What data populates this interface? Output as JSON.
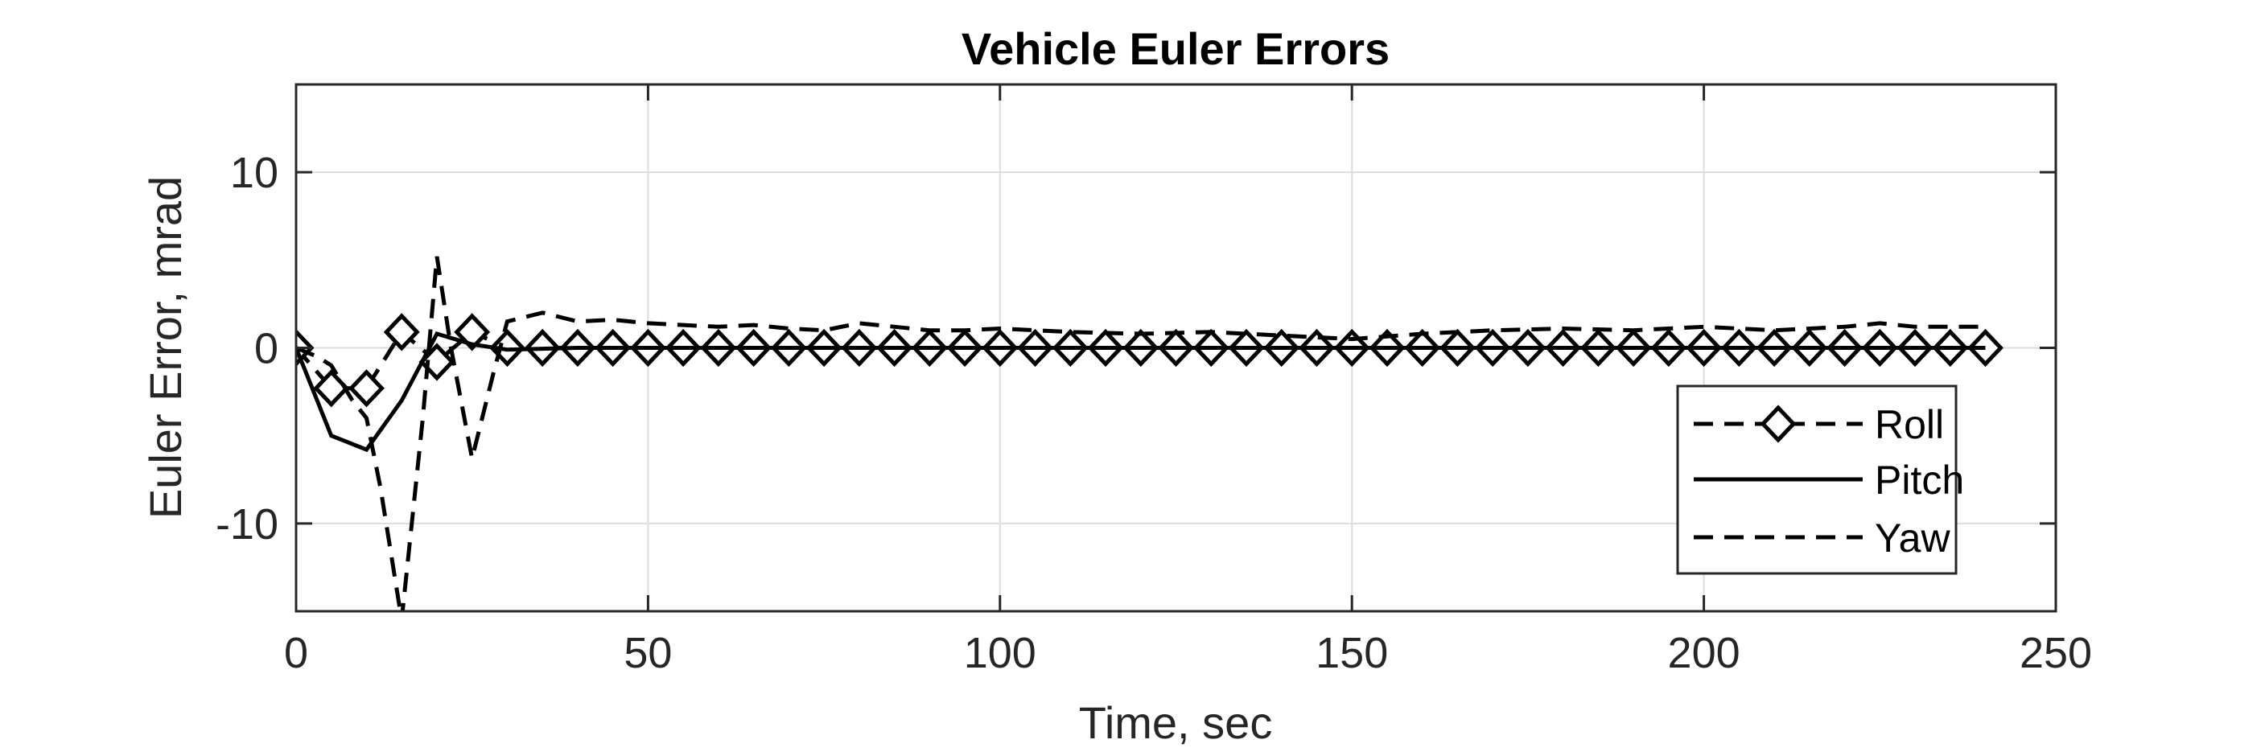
{
  "chart_data": {
    "type": "line",
    "title": "Vehicle Euler Errors",
    "xlabel": "Time, sec",
    "ylabel": "Euler Error, mrad",
    "xlim": [
      0,
      250
    ],
    "ylim": [
      -15,
      15
    ],
    "xticks": [
      0,
      50,
      100,
      150,
      200,
      250
    ],
    "yticks": [
      -10,
      0,
      10
    ],
    "xtick_labels": [
      "0",
      "50",
      "100",
      "150",
      "200",
      "250"
    ],
    "ytick_labels": [
      "-10",
      "0",
      "10"
    ],
    "grid": true,
    "legend_position": "lower-right",
    "series": [
      {
        "name": "Roll",
        "style": "dashed",
        "marker": "diamond",
        "color": "#000000",
        "x": [
          0,
          5,
          10,
          15,
          20,
          25,
          30,
          35,
          40,
          45,
          50,
          55,
          60,
          65,
          70,
          75,
          80,
          85,
          90,
          95,
          100,
          105,
          110,
          115,
          120,
          125,
          130,
          135,
          140,
          145,
          150,
          155,
          160,
          165,
          170,
          175,
          180,
          185,
          190,
          195,
          200,
          205,
          210,
          215,
          220,
          225,
          230,
          235,
          240
        ],
        "y": [
          0,
          -2.3,
          -2.3,
          0.9,
          -0.8,
          0.9,
          0,
          0,
          0,
          0,
          0,
          0,
          0,
          0,
          0,
          0,
          0,
          0,
          0,
          0,
          0,
          0,
          0,
          0,
          0,
          0,
          0,
          0,
          0,
          0,
          0,
          0,
          0,
          0,
          0,
          0,
          0,
          0,
          0,
          0,
          0,
          0,
          0,
          0,
          0,
          0,
          0,
          0,
          0
        ]
      },
      {
        "name": "Pitch",
        "style": "solid",
        "marker": "none",
        "color": "#000000",
        "x": [
          0,
          5,
          10,
          15,
          20,
          25,
          30,
          40,
          50,
          60,
          70,
          80,
          90,
          100,
          120,
          140,
          160,
          180,
          200,
          220,
          240
        ],
        "y": [
          0,
          -5,
          -5.8,
          -3,
          0.8,
          0.2,
          -0.1,
          0,
          0,
          0,
          0,
          0,
          0,
          0,
          0,
          0,
          0,
          0,
          0,
          0,
          0
        ]
      },
      {
        "name": "Yaw",
        "style": "dashed",
        "marker": "none",
        "color": "#000000",
        "x": [
          0,
          3,
          5,
          8,
          10,
          12,
          15,
          18,
          20,
          22,
          25,
          28,
          30,
          35,
          40,
          45,
          50,
          55,
          60,
          65,
          70,
          75,
          80,
          85,
          90,
          95,
          100,
          110,
          120,
          130,
          140,
          150,
          160,
          170,
          180,
          190,
          200,
          210,
          220,
          225,
          230,
          240
        ],
        "y": [
          0,
          -0.5,
          -1,
          -3,
          -4,
          -8,
          -15.5,
          -4,
          5.2,
          0,
          -6.3,
          -1.5,
          1.5,
          2,
          1.5,
          1.6,
          1.4,
          1.3,
          1.2,
          1.3,
          1.1,
          1,
          1.4,
          1.2,
          1,
          1,
          1.1,
          0.9,
          0.8,
          0.9,
          0.7,
          0.5,
          0.8,
          1,
          1.1,
          1,
          1.2,
          1,
          1.2,
          1.4,
          1.2,
          1.2
        ]
      }
    ]
  }
}
